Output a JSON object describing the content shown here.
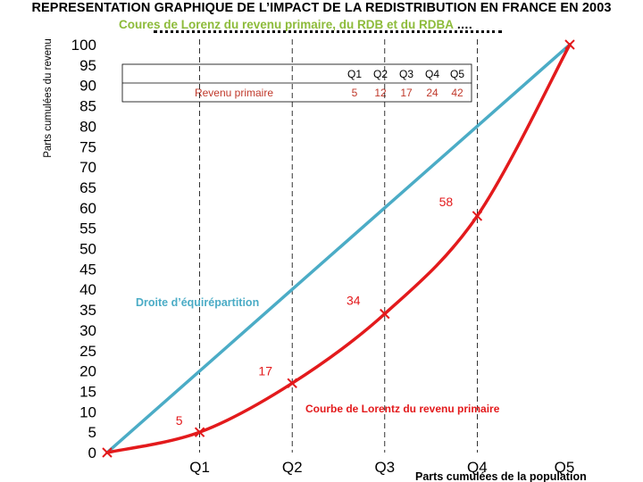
{
  "chart_data": {
    "type": "line",
    "title": "REPRESENTATION GRAPHIQUE DE L’IMPACT DE LA REDISTRIBUTION EN FRANCE EN 2003",
    "subtitle": "Coures de Lorenz du revenu primaire, du RDB et du RDBA",
    "subtitle_trail": "….",
    "ylabel": "Parts cumulées du revenu",
    "xlabel": "Parts cumulées de la population",
    "ylim": [
      0,
      100
    ],
    "yticks": [
      "100",
      "95",
      "90",
      "85",
      "80",
      "75",
      "70",
      "65",
      "60",
      "55",
      "50",
      "45",
      "40",
      "35",
      "30",
      "25",
      "20",
      "15",
      "10",
      "5",
      "0"
    ],
    "categories": [
      "Q1",
      "Q2",
      "Q3",
      "Q4",
      "Q5"
    ],
    "grid": "dashed vertical lines at Q1–Q4",
    "series": [
      {
        "name": "Droite d’équirépartition",
        "color": "#4bacc6",
        "points": [
          [
            0,
            0
          ],
          [
            1,
            20
          ],
          [
            2,
            40
          ],
          [
            3,
            60
          ],
          [
            4,
            80
          ],
          [
            5,
            100
          ]
        ]
      },
      {
        "name": "Courbe de Lorentz du revenu primaire",
        "color": "#e31a1c",
        "points": [
          [
            0,
            0
          ],
          [
            1,
            5
          ],
          [
            2,
            17
          ],
          [
            3,
            34
          ],
          [
            4,
            58
          ],
          [
            5,
            100
          ]
        ],
        "point_labels": [
          "5",
          "17",
          "34",
          "58"
        ]
      }
    ],
    "table": {
      "headers": [
        "Q1",
        "Q2",
        "Q3",
        "Q4",
        "Q5"
      ],
      "row_label": "Revenu primaire",
      "values": [
        "5",
        "12",
        "17",
        "24",
        "42"
      ]
    }
  }
}
